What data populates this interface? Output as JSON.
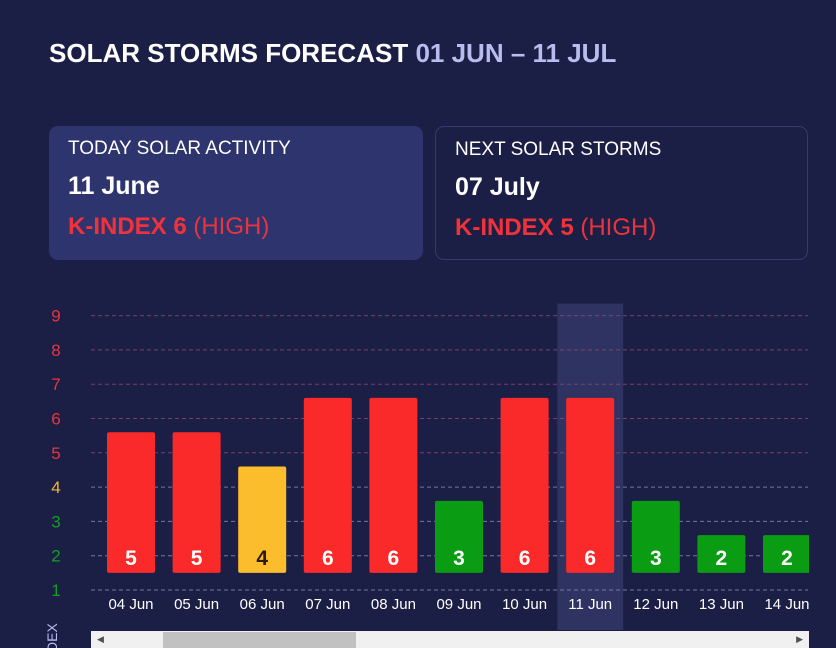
{
  "header": {
    "title": "SOLAR STORMS FORECAST",
    "range": "01 JUN – 11 JUL"
  },
  "cards": {
    "today": {
      "label": "TODAY SOLAR ACTIVITY",
      "date": "11 June",
      "kindex": "K-INDEX 6",
      "level": "(HIGH)"
    },
    "next": {
      "label": "NEXT SOLAR STORMS",
      "date": "07 July",
      "kindex": "K-INDEX 5",
      "level": "(HIGH)"
    }
  },
  "colors": {
    "high": "#fb2a2a",
    "moderate": "#fbbd2c",
    "low": "#0a9c12",
    "background": "#1c1f45",
    "highlight": "#2e3361"
  },
  "chart_data": {
    "type": "bar",
    "title": "",
    "xlabel": "",
    "ylabel": "K-INDEX",
    "ylabel_visible": "DEX",
    "ylim": [
      1,
      9
    ],
    "yticks": [
      1,
      2,
      3,
      4,
      5,
      6,
      7,
      8,
      9
    ],
    "grid": true,
    "highlighted_category": "11 Jun",
    "categories": [
      "04 Jun",
      "05 Jun",
      "06 Jun",
      "07 Jun",
      "08 Jun",
      "09 Jun",
      "10 Jun",
      "11 Jun",
      "12 Jun",
      "13 Jun",
      "14 Jun"
    ],
    "values": [
      5,
      5,
      4,
      6,
      6,
      3,
      6,
      6,
      3,
      2,
      2
    ]
  }
}
